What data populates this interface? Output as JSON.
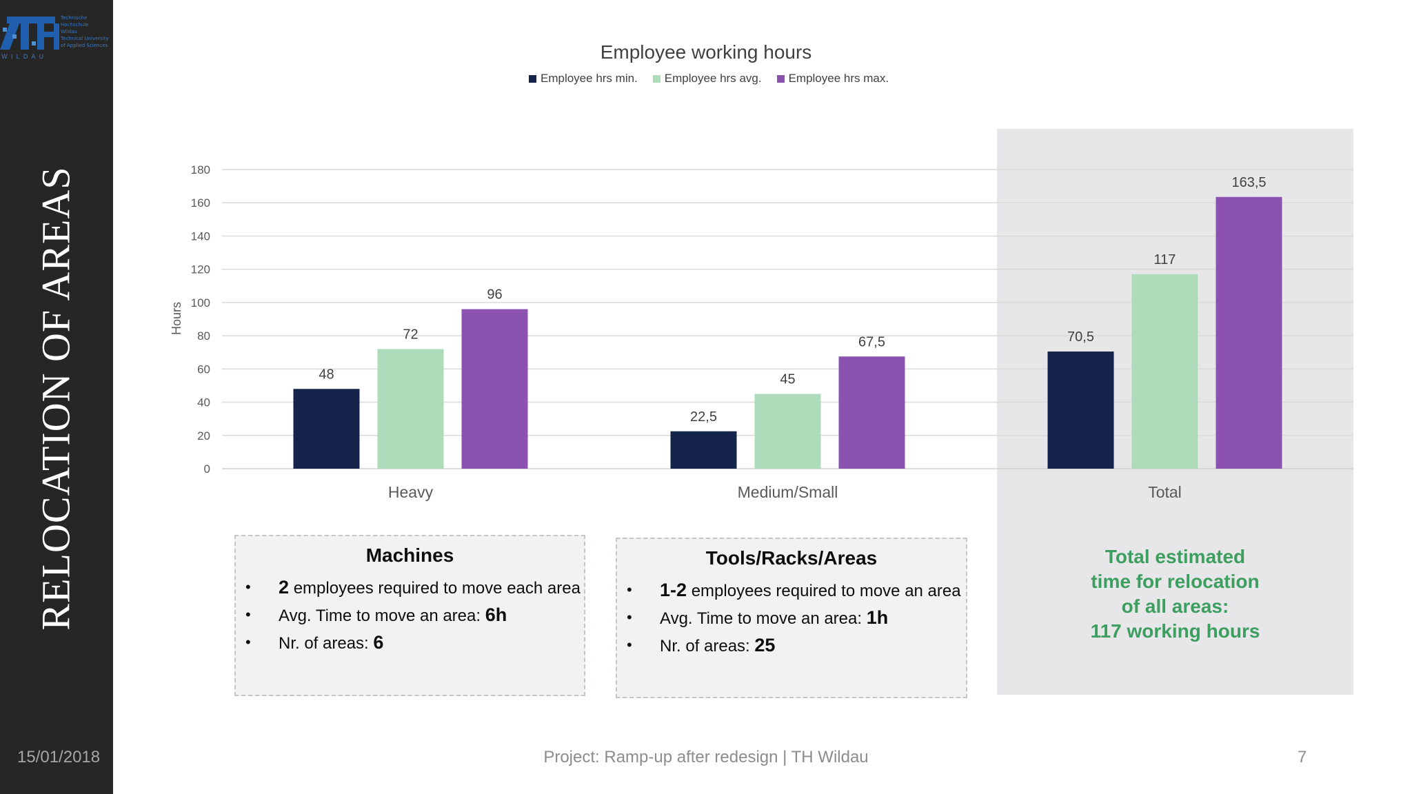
{
  "sidebar": {
    "title": "RELOCATION OF AREAS",
    "date": "15/01/2018",
    "logo": {
      "mark": "TH",
      "word": "WILDAU",
      "lines": [
        "Technische",
        "Hochschule",
        "Wildau",
        "Technical University",
        "of Applied Sciences"
      ]
    }
  },
  "chart_data": {
    "type": "bar",
    "title": "Employee working hours",
    "ylabel": "Hours",
    "xlabel": "",
    "ylim": [
      0,
      180
    ],
    "yticks": [
      0,
      20,
      40,
      60,
      80,
      100,
      120,
      140,
      160,
      180
    ],
    "categories": [
      "Heavy",
      "Medium/Small",
      "Total"
    ],
    "series": [
      {
        "name": "Employee hrs min.",
        "values": [
          48,
          22.5,
          70.5
        ],
        "labels": [
          "48",
          "22,5",
          "70,5"
        ],
        "color": "#15244a"
      },
      {
        "name": "Employee hrs avg.",
        "values": [
          72,
          45,
          117
        ],
        "labels": [
          "72",
          "45",
          "117"
        ],
        "color": "#aedbba"
      },
      {
        "name": "Employee hrs max.",
        "values": [
          96,
          67.5,
          163.5
        ],
        "labels": [
          "96",
          "67,5",
          "163,5"
        ],
        "color": "#8c52b0"
      }
    ],
    "grid": true,
    "legend_position": "top"
  },
  "boxes": {
    "machines": {
      "title": "Machines",
      "items": [
        {
          "bold": "2",
          "text": " employees required to move each area"
        },
        {
          "text": "Avg. Time to move an area: ",
          "bold": "6h"
        },
        {
          "text": "Nr. of areas: ",
          "bold": "6"
        }
      ]
    },
    "tools": {
      "title": "Tools/Racks/Areas",
      "items": [
        {
          "bold": "1-2",
          "text": " employees required to move an area"
        },
        {
          "text": "Avg. Time to move an area: ",
          "bold": "1h"
        },
        {
          "text": "Nr. of areas: ",
          "bold": "25"
        }
      ]
    }
  },
  "total_note": {
    "lines": [
      "Total estimated",
      "time for relocation",
      "of all areas:",
      "117 working hours"
    ],
    "color": "#3c9e5f"
  },
  "footer": {
    "text": "Project: Ramp-up after redesign | TH Wildau",
    "page": "7"
  }
}
